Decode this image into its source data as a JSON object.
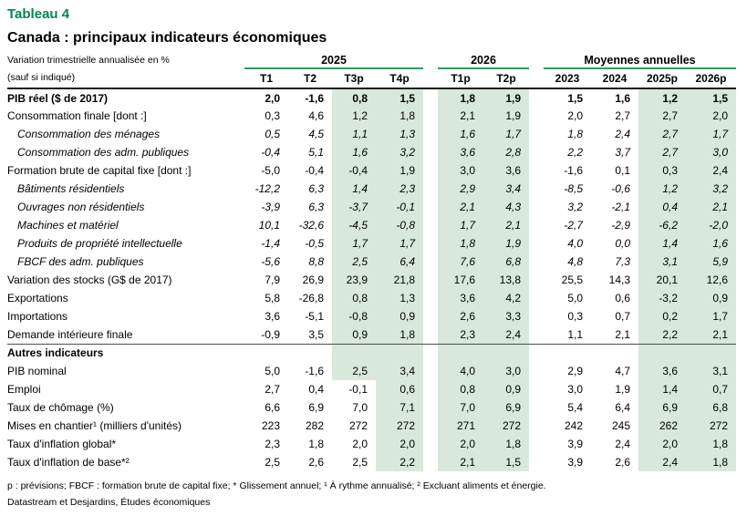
{
  "title": "Tableau 4",
  "subtitle": "Canada : principaux indicateurs économiques",
  "header_note": {
    "line1": "Variation trimestrielle annualisée en %",
    "line2": "(sauf si indiqué)"
  },
  "colors": {
    "accent_green": "#00864e",
    "rule_green": "#2e9c63",
    "forecast_shade_green": "#d8e8dc"
  },
  "footnotes": {
    "definitions": "p : prévisions; FBCF : formation brute de capital fixe; * Glissement annuel; ¹ À rythme annualisé; ² Excluant aliments et énergie.",
    "source": "Datastream et Desjardins, Études économiques"
  },
  "chart_data": {
    "type": "table",
    "title": "Canada : principaux indicateurs économiques",
    "column_groups": [
      {
        "label": "2025",
        "span": 4
      },
      {
        "label": "2026",
        "span": 2
      },
      {
        "label": "Moyennes annuelles",
        "span": 4
      }
    ],
    "columns": [
      "T1",
      "T2",
      "T3p",
      "T4p",
      "T1p",
      "T2p",
      "2023",
      "2024",
      "2025p",
      "2026p"
    ],
    "forecast_shaded_columns": [
      "T3p",
      "T4p",
      "T1p",
      "T2p",
      "2025p",
      "2026p"
    ],
    "rows": [
      {
        "label": "PIB réel ($ de 2017)",
        "style": "bold",
        "values": [
          "2,0",
          "-1,6",
          "0,8",
          "1,5",
          "1,8",
          "1,9",
          "1,5",
          "1,6",
          "1,2",
          "1,5"
        ]
      },
      {
        "label": "Consommation finale [dont :]",
        "style": "normal",
        "values": [
          "0,3",
          "4,6",
          "1,2",
          "1,8",
          "2,1",
          "1,9",
          "2,0",
          "2,7",
          "2,7",
          "2,0"
        ]
      },
      {
        "label": "Consommation des ménages",
        "style": "italic",
        "values": [
          "0,5",
          "4,5",
          "1,1",
          "1,3",
          "1,6",
          "1,7",
          "1,8",
          "2,4",
          "2,7",
          "1,7"
        ]
      },
      {
        "label": "Consommation des adm. publiques",
        "style": "italic",
        "values": [
          "-0,4",
          "5,1",
          "1,6",
          "3,2",
          "3,6",
          "2,8",
          "2,2",
          "3,7",
          "2,7",
          "3,0"
        ]
      },
      {
        "label": "Formation brute de capital fixe [dont :]",
        "style": "normal",
        "values": [
          "-5,0",
          "-0,4",
          "-0,4",
          "1,9",
          "3,0",
          "3,6",
          "-1,6",
          "0,1",
          "0,3",
          "2,4"
        ]
      },
      {
        "label": "Bâtiments résidentiels",
        "style": "italic",
        "values": [
          "-12,2",
          "6,3",
          "1,4",
          "2,3",
          "2,9",
          "3,4",
          "-8,5",
          "-0,6",
          "1,2",
          "3,2"
        ]
      },
      {
        "label": "Ouvrages non résidentiels",
        "style": "italic",
        "values": [
          "-3,9",
          "6,3",
          "-3,7",
          "-0,1",
          "2,1",
          "4,3",
          "3,2",
          "-2,1",
          "0,4",
          "2,1"
        ]
      },
      {
        "label": "Machines et matériel",
        "style": "italic",
        "values": [
          "10,1",
          "-32,6",
          "-4,5",
          "-0,8",
          "1,7",
          "2,1",
          "-2,7",
          "-2,9",
          "-6,2",
          "-2,0"
        ]
      },
      {
        "label": "Produits de propriété intellectuelle",
        "style": "italic",
        "values": [
          "-1,4",
          "-0,5",
          "1,7",
          "1,7",
          "1,8",
          "1,9",
          "4,0",
          "0,0",
          "1,4",
          "1,6"
        ]
      },
      {
        "label": "FBCF des adm. publiques",
        "style": "italic",
        "values": [
          "-5,6",
          "8,8",
          "2,5",
          "6,4",
          "7,6",
          "6,8",
          "4,8",
          "7,3",
          "3,1",
          "5,9"
        ]
      },
      {
        "label": "Variation des stocks (G$ de 2017)",
        "style": "normal",
        "values": [
          "7,9",
          "26,9",
          "23,9",
          "21,8",
          "17,6",
          "13,8",
          "25,5",
          "14,3",
          "20,1",
          "12,6"
        ]
      },
      {
        "label": "Exportations",
        "style": "normal",
        "values": [
          "5,8",
          "-26,8",
          "0,8",
          "1,3",
          "3,6",
          "4,2",
          "5,0",
          "0,6",
          "-3,2",
          "0,9"
        ]
      },
      {
        "label": "Importations",
        "style": "normal",
        "values": [
          "3,6",
          "-5,1",
          "-0,8",
          "0,9",
          "2,6",
          "3,3",
          "0,3",
          "0,7",
          "0,2",
          "1,7"
        ]
      },
      {
        "label": "Demande intérieure finale",
        "style": "normal",
        "values": [
          "-0,9",
          "3,5",
          "0,9",
          "1,8",
          "2,3",
          "2,4",
          "1,1",
          "2,1",
          "2,2",
          "2,1"
        ]
      },
      {
        "label": "Autres indicateurs",
        "style": "section",
        "values": [
          "",
          "",
          "",
          "",
          "",
          "",
          "",
          "",
          "",
          ""
        ]
      },
      {
        "label": "PIB nominal",
        "style": "normal",
        "values": [
          "5,0",
          "-1,6",
          "2,5",
          "3,4",
          "4,0",
          "3,0",
          "2,9",
          "4,7",
          "3,6",
          "3,1"
        ]
      },
      {
        "label": "Emploi",
        "style": "normal",
        "unshaded_columns": [
          "T3p"
        ],
        "values": [
          "2,7",
          "0,4",
          "-0,1",
          "0,6",
          "0,8",
          "0,9",
          "3,0",
          "1,9",
          "1,4",
          "0,7"
        ]
      },
      {
        "label": "Taux de chômage (%)",
        "style": "normal",
        "unshaded_columns": [
          "T3p"
        ],
        "values": [
          "6,6",
          "6,9",
          "7,0",
          "7,1",
          "7,0",
          "6,9",
          "5,4",
          "6,4",
          "6,9",
          "6,8"
        ]
      },
      {
        "label": "Mises en chantier¹ (milliers d'unités)",
        "style": "normal",
        "unshaded_columns": [
          "T3p"
        ],
        "values": [
          "223",
          "282",
          "272",
          "272",
          "271",
          "272",
          "242",
          "245",
          "262",
          "272"
        ]
      },
      {
        "label": "Taux d'inflation global*",
        "style": "normal",
        "unshaded_columns": [
          "T3p"
        ],
        "values": [
          "2,3",
          "1,8",
          "2,0",
          "2,0",
          "2,0",
          "1,8",
          "3,9",
          "2,4",
          "2,0",
          "1,8"
        ]
      },
      {
        "label": "Taux d'inflation de base*²",
        "style": "normal",
        "unshaded_columns": [
          "T3p"
        ],
        "values": [
          "2,5",
          "2,6",
          "2,5",
          "2,2",
          "2,1",
          "1,5",
          "3,9",
          "2,6",
          "2,4",
          "1,8"
        ]
      }
    ]
  }
}
